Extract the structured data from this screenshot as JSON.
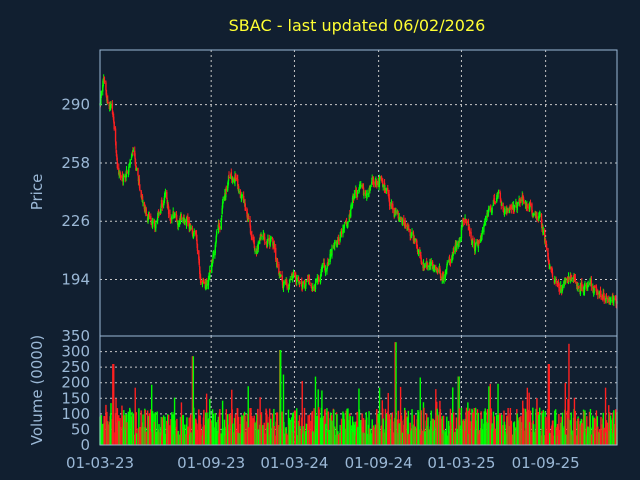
{
  "chart_data": {
    "type": "candlestick",
    "title": "SBAC - last updated 06/02/2026",
    "colors": {
      "background": "#111f30",
      "up": "#00ff00",
      "down": "#ff2020",
      "title": "#ffff33",
      "axis_text": "#9bb8d6"
    },
    "price_panel": {
      "ylabel": "Price",
      "yticks": [
        194,
        226,
        258,
        290
      ],
      "ylim": [
        163,
        320
      ],
      "grid": true
    },
    "volume_panel": {
      "ylabel": "Volume (0000)",
      "yticks": [
        0,
        50,
        100,
        150,
        200,
        250,
        300,
        350
      ],
      "ylim": [
        0,
        350
      ],
      "grid": true
    },
    "xticks": [
      "01-03-23",
      "01-09-23",
      "01-03-24",
      "01-09-24",
      "01-03-25",
      "01-09-25"
    ],
    "date_range": [
      "2023-01-03",
      "2026-02-06"
    ],
    "price_path": [
      [
        "2023-01-03",
        290
      ],
      [
        "2023-01-10",
        302
      ],
      [
        "2023-01-20",
        292
      ],
      [
        "2023-02-01",
        282
      ],
      [
        "2023-02-10",
        255
      ],
      [
        "2023-02-20",
        248
      ],
      [
        "2023-03-01",
        252
      ],
      [
        "2023-03-15",
        262
      ],
      [
        "2023-03-25",
        253
      ],
      [
        "2023-04-05",
        238
      ],
      [
        "2023-04-15",
        228
      ],
      [
        "2023-04-25",
        226
      ],
      [
        "2023-05-05",
        224
      ],
      [
        "2023-05-15",
        230
      ],
      [
        "2023-05-25",
        240
      ],
      [
        "2023-06-05",
        228
      ],
      [
        "2023-06-15",
        232
      ],
      [
        "2023-06-25",
        225
      ],
      [
        "2023-07-05",
        230
      ],
      [
        "2023-07-20",
        222
      ],
      [
        "2023-08-01",
        215
      ],
      [
        "2023-08-10",
        195
      ],
      [
        "2023-08-20",
        188
      ],
      [
        "2023-09-01",
        200
      ],
      [
        "2023-09-12",
        212
      ],
      [
        "2023-09-25",
        230
      ],
      [
        "2023-10-05",
        242
      ],
      [
        "2023-10-15",
        252
      ],
      [
        "2023-10-25",
        252
      ],
      [
        "2023-11-05",
        240
      ],
      [
        "2023-11-20",
        228
      ],
      [
        "2023-12-01",
        215
      ],
      [
        "2023-12-12",
        210
      ],
      [
        "2023-12-22",
        220
      ],
      [
        "2024-01-05",
        218
      ],
      [
        "2024-01-20",
        210
      ],
      [
        "2024-02-01",
        195
      ],
      [
        "2024-02-15",
        192
      ],
      [
        "2024-03-01",
        195
      ],
      [
        "2024-03-20",
        190
      ],
      [
        "2024-04-05",
        193
      ],
      [
        "2024-04-20",
        190
      ],
      [
        "2024-05-05",
        198
      ],
      [
        "2024-05-20",
        208
      ],
      [
        "2024-06-05",
        215
      ],
      [
        "2024-06-20",
        222
      ],
      [
        "2024-07-05",
        232
      ],
      [
        "2024-07-20",
        242
      ],
      [
        "2024-08-05",
        238
      ],
      [
        "2024-08-20",
        245
      ],
      [
        "2024-09-05",
        247
      ],
      [
        "2024-09-20",
        240
      ],
      [
        "2024-10-05",
        230
      ],
      [
        "2024-10-20",
        226
      ],
      [
        "2024-11-05",
        222
      ],
      [
        "2024-11-20",
        215
      ],
      [
        "2024-12-05",
        205
      ],
      [
        "2024-12-20",
        200
      ],
      [
        "2025-01-05",
        198
      ],
      [
        "2025-01-20",
        196
      ],
      [
        "2025-02-05",
        202
      ],
      [
        "2025-02-20",
        212
      ],
      [
        "2025-03-05",
        225
      ],
      [
        "2025-03-20",
        222
      ],
      [
        "2025-04-01",
        210
      ],
      [
        "2025-04-15",
        218
      ],
      [
        "2025-05-01",
        230
      ],
      [
        "2025-05-20",
        240
      ],
      [
        "2025-06-05",
        235
      ],
      [
        "2025-06-20",
        232
      ],
      [
        "2025-07-05",
        236
      ],
      [
        "2025-07-20",
        240
      ],
      [
        "2025-08-05",
        232
      ],
      [
        "2025-08-20",
        228
      ],
      [
        "2025-09-05",
        212
      ],
      [
        "2025-09-15",
        198
      ],
      [
        "2025-10-01",
        190
      ],
      [
        "2025-10-15",
        193
      ],
      [
        "2025-11-01",
        196
      ],
      [
        "2025-11-20",
        190
      ],
      [
        "2025-12-05",
        188
      ],
      [
        "2025-12-20",
        190
      ],
      [
        "2026-01-10",
        186
      ],
      [
        "2026-01-25",
        184
      ],
      [
        "2026-02-06",
        180
      ]
    ],
    "volume_typical": [
      30,
      120
    ],
    "volume_peaks": [
      [
        "2023-02-01",
        260
      ],
      [
        "2023-07-25",
        285
      ],
      [
        "2024-02-01",
        305
      ],
      [
        "2024-10-10",
        330
      ],
      [
        "2025-02-25",
        220
      ],
      [
        "2025-09-10",
        260
      ],
      [
        "2025-10-25",
        325
      ]
    ]
  }
}
